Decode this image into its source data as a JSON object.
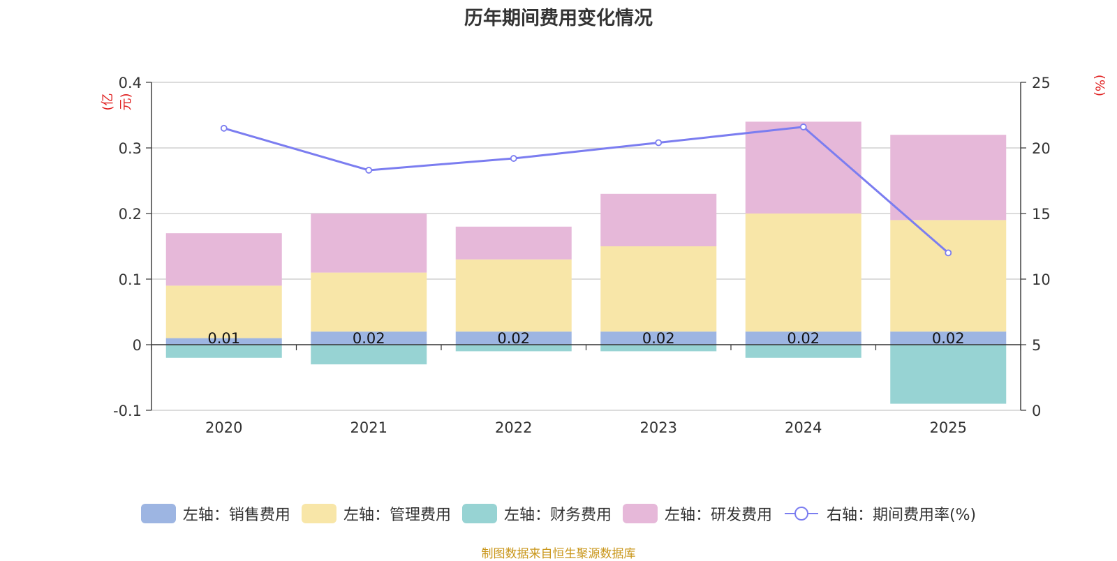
{
  "title": "历年期间费用变化情况",
  "left_unit": "(亿元)",
  "right_unit": "(%)",
  "source": "制图数据来自恒生聚源数据库",
  "chart_data": {
    "type": "bar",
    "stacked": true,
    "categories": [
      "2020",
      "2021",
      "2022",
      "2023",
      "2024",
      "2025"
    ],
    "series": [
      {
        "name": "左轴：销售费用",
        "axis": "left",
        "color": "#9db5e2",
        "values": [
          0.01,
          0.02,
          0.02,
          0.02,
          0.02,
          0.02
        ]
      },
      {
        "name": "左轴：管理费用",
        "axis": "left",
        "color": "#f8e6a8",
        "values": [
          0.08,
          0.09,
          0.11,
          0.13,
          0.18,
          0.17
        ]
      },
      {
        "name": "左轴：财务费用",
        "axis": "left",
        "color": "#97d3d3",
        "values": [
          -0.02,
          -0.03,
          -0.01,
          -0.01,
          -0.02,
          -0.09
        ]
      },
      {
        "name": "左轴：研发费用",
        "axis": "left",
        "color": "#e6b8d9",
        "values": [
          0.08,
          0.09,
          0.05,
          0.08,
          0.14,
          0.13
        ]
      },
      {
        "name": "右轴：期间费用率(%)",
        "axis": "right",
        "type": "line",
        "color": "#7b7df0",
        "values": [
          21.5,
          18.3,
          19.2,
          20.4,
          21.6,
          12.0
        ]
      }
    ],
    "bar_labels": [
      "0.01",
      "0.02",
      "0.02",
      "0.02",
      "0.02",
      "0.02"
    ],
    "left_axis": {
      "min": -0.1,
      "max": 0.4,
      "ticks": [
        "-0.1",
        "0",
        "0.1",
        "0.2",
        "0.3",
        "0.4"
      ]
    },
    "right_axis": {
      "min": 0,
      "max": 25,
      "ticks": [
        "0",
        "5",
        "10",
        "15",
        "20",
        "25"
      ]
    },
    "grid": true,
    "legend_position": "bottom"
  }
}
